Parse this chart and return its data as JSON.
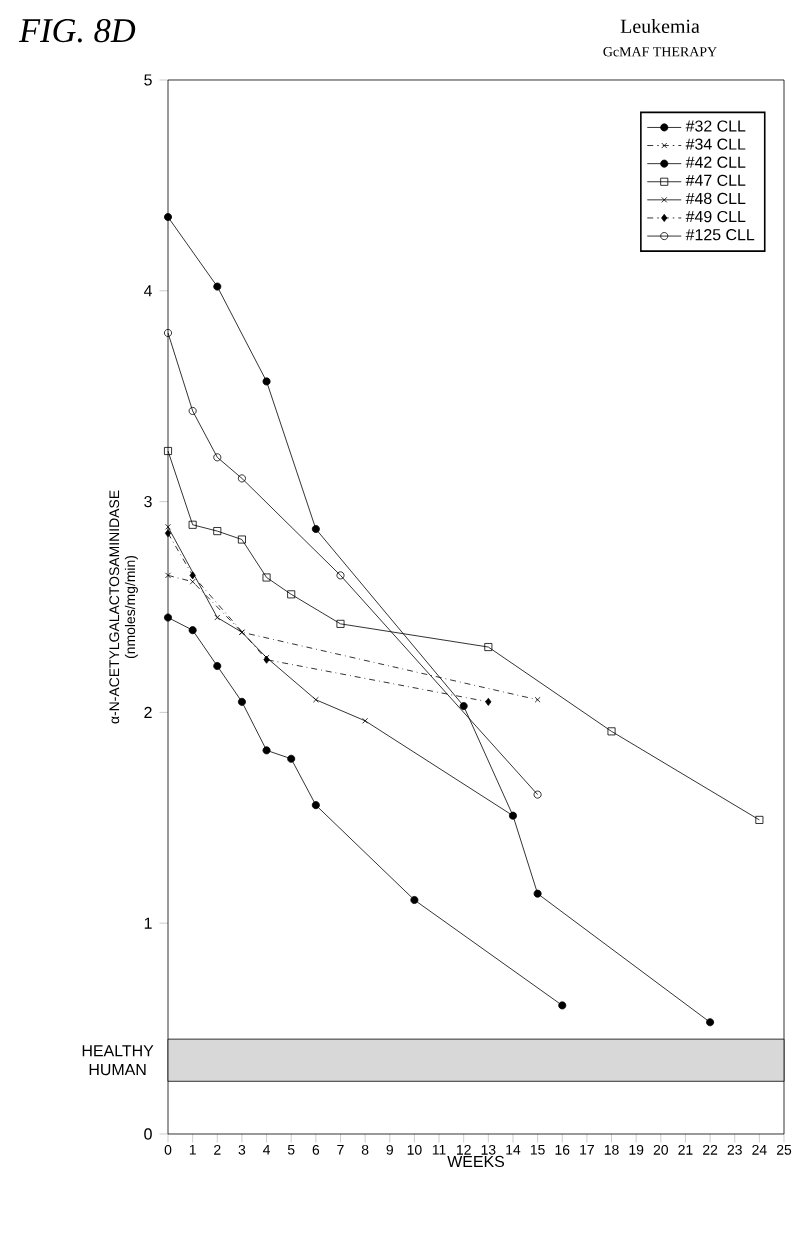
{
  "chart_data": {
    "type": "line",
    "title": "Leukemia",
    "subtitle": "GcMAF THERAPY",
    "xlabel": "WEEKS",
    "ylabel": "α-N-ACETYLGALACTOSAMINIDASE (nmoles/mg/min)",
    "annotations": [
      "FIG. 8D"
    ],
    "xlim": [
      0,
      25
    ],
    "ylim": [
      0,
      5
    ],
    "xticks": [
      0,
      1,
      2,
      3,
      4,
      5,
      6,
      7,
      8,
      9,
      10,
      11,
      12,
      13,
      14,
      15,
      16,
      17,
      18,
      19,
      20,
      21,
      22,
      23,
      24,
      25
    ],
    "yticks": [
      0,
      1,
      2,
      3,
      4,
      5
    ],
    "grid": false,
    "legend": "top right",
    "bands": [
      {
        "axis": "y",
        "from": 0.25,
        "to": 0.45,
        "label": "HEALTHY HUMAN",
        "color": "#d8d8d8"
      }
    ],
    "series": [
      {
        "name": "#32 CLL",
        "color": "#000000",
        "marker": "star",
        "line_style": "solid",
        "x": [
          0,
          1,
          2,
          3,
          4,
          5,
          6,
          10,
          16
        ],
        "values": [
          2.45,
          2.39,
          2.22,
          2.05,
          1.82,
          1.78,
          1.56,
          1.11,
          0.61
        ]
      },
      {
        "name": "#34 CLL",
        "color": "#000000",
        "marker": "cross",
        "line_style": "dashdotted",
        "x": [
          0,
          1,
          3,
          15
        ],
        "values": [
          2.65,
          2.62,
          2.38,
          2.06
        ]
      },
      {
        "name": "#42 CLL",
        "color": "#000000",
        "marker": "star",
        "line_style": "solid",
        "x": [
          0,
          2,
          4,
          6,
          12,
          14,
          15,
          22
        ],
        "values": [
          4.35,
          4.02,
          3.57,
          2.87,
          2.03,
          1.51,
          1.14,
          0.53
        ]
      },
      {
        "name": "#47 CLL",
        "color": "#000000",
        "marker": "square",
        "line_style": "solid",
        "x": [
          0,
          1,
          2,
          3,
          4,
          5,
          7,
          13,
          18,
          24
        ],
        "values": [
          3.24,
          2.89,
          2.86,
          2.82,
          2.64,
          2.56,
          2.42,
          2.31,
          1.91,
          1.49
        ]
      },
      {
        "name": "#48 CLL",
        "color": "#000000",
        "marker": "cross",
        "line_style": "solid",
        "x": [
          0,
          2,
          3,
          4,
          6,
          8,
          14
        ],
        "values": [
          2.88,
          2.45,
          2.38,
          2.26,
          2.06,
          1.96,
          1.51
        ]
      },
      {
        "name": "#49 CLL",
        "color": "#000000",
        "marker": "diamond",
        "line_style": "dashdotted",
        "x": [
          0,
          1,
          4,
          13
        ],
        "values": [
          2.85,
          2.65,
          2.25,
          2.05
        ]
      },
      {
        "name": "#125 CLL",
        "color": "#000000",
        "marker": "circle",
        "line_style": "solid",
        "x": [
          0,
          1,
          2,
          3,
          7,
          15
        ],
        "values": [
          3.8,
          3.43,
          3.21,
          3.11,
          2.65,
          1.61
        ]
      }
    ]
  }
}
